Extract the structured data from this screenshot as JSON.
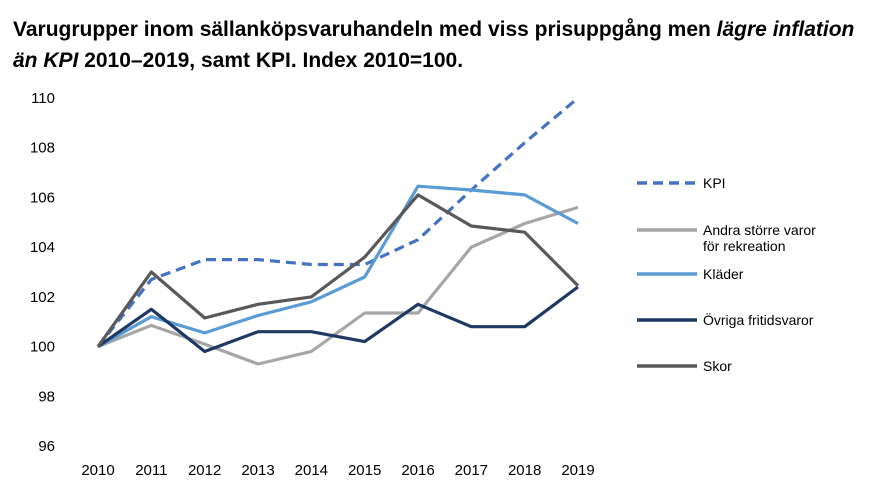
{
  "title": {
    "part1": "Varugrupper inom sällanköpsvaruhandeln med viss prisuppgång men ",
    "italic": "lägre inflation än KPI",
    "part2": " 2010–2019, samt KPI. Index 2010=100."
  },
  "chart_data": {
    "type": "line",
    "title": "Varugrupper inom sällanköpsvaruhandeln med viss prisuppgång men lägre inflation än KPI 2010–2019, samt KPI. Index 2010=100.",
    "xlabel": "",
    "ylabel": "",
    "ylim": [
      96,
      110
    ],
    "yticks": [
      96,
      98,
      100,
      102,
      104,
      106,
      108,
      110
    ],
    "grid": false,
    "legend_position": "right",
    "categories": [
      "2010",
      "2011",
      "2012",
      "2013",
      "2014",
      "2015",
      "2016",
      "2017",
      "2018",
      "2019"
    ],
    "series": [
      {
        "name": "KPI",
        "color": "#4472c4",
        "dash": true,
        "values": [
          100,
          102.7,
          103.5,
          103.5,
          103.3,
          103.3,
          104.3,
          106.3,
          108.2,
          110.0
        ]
      },
      {
        "name": "Andra större varor för rekreation",
        "color": "#a6a6a6",
        "dash": false,
        "values": [
          100,
          100.85,
          100.1,
          99.3,
          99.8,
          101.35,
          101.35,
          104.0,
          104.95,
          105.6
        ]
      },
      {
        "name": "Kläder",
        "color": "#5b9bd5",
        "dash": false,
        "values": [
          100,
          101.2,
          100.55,
          101.25,
          101.8,
          102.8,
          106.45,
          106.3,
          106.1,
          104.95
        ]
      },
      {
        "name": "Övriga fritidsvaror",
        "color": "#1f3864",
        "dash": false,
        "values": [
          100,
          101.5,
          99.8,
          100.6,
          100.6,
          100.2,
          101.7,
          100.8,
          100.8,
          102.4
        ]
      },
      {
        "name": "Skor",
        "color": "#595959",
        "dash": false,
        "values": [
          100,
          103.0,
          101.15,
          101.7,
          102.0,
          103.6,
          106.1,
          104.85,
          104.6,
          102.45
        ]
      }
    ]
  }
}
